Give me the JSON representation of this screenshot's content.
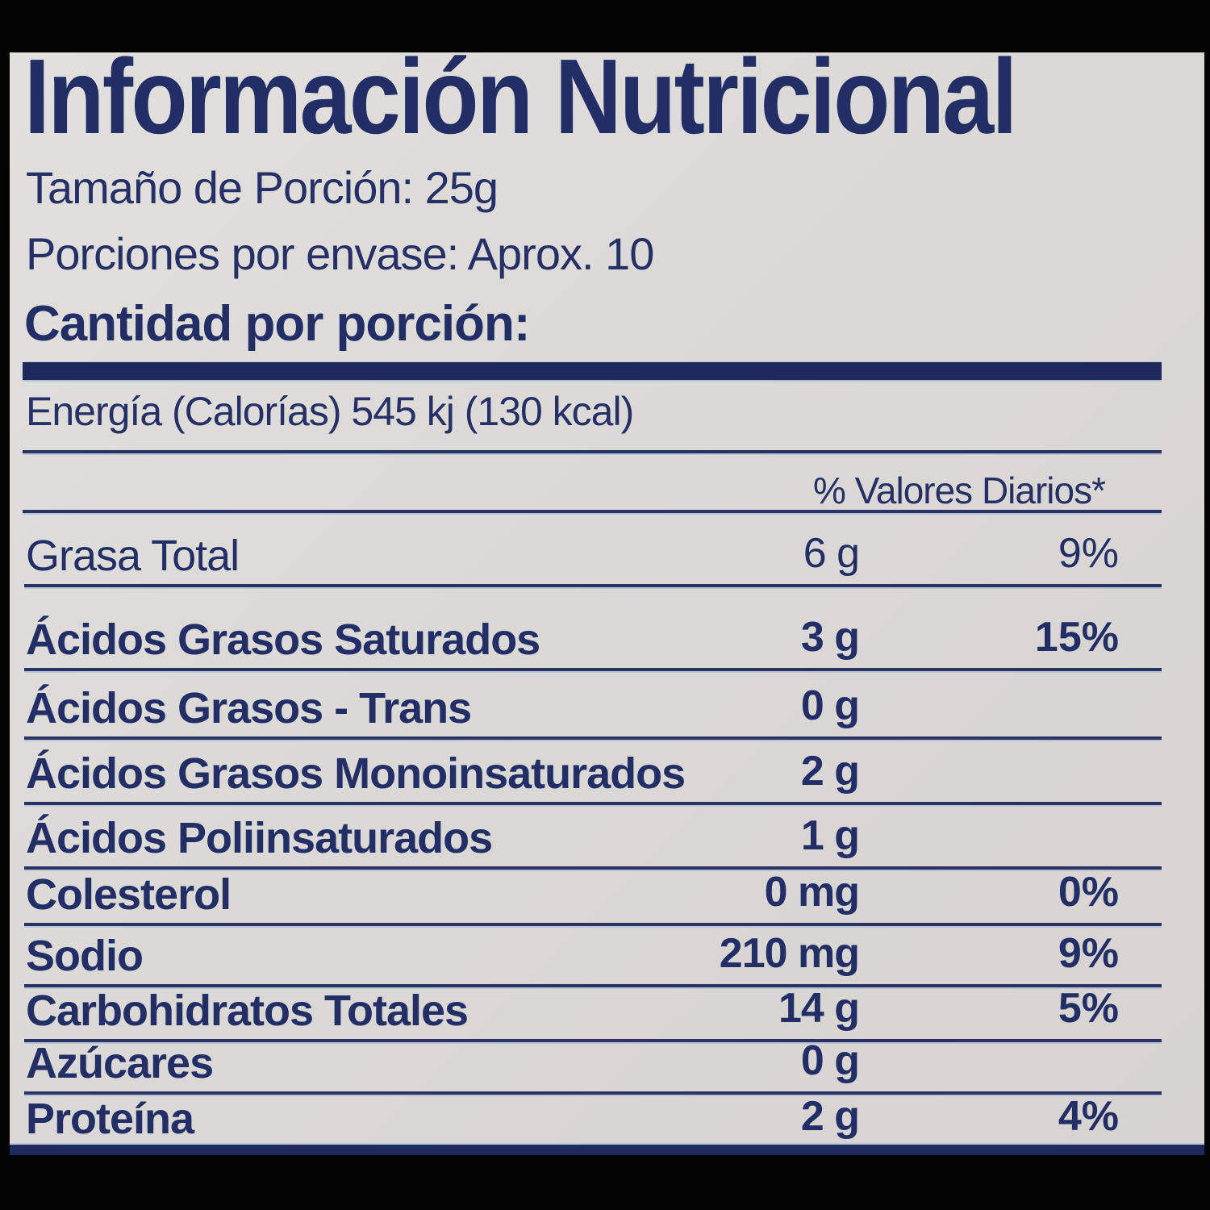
{
  "title": "Información Nutricional",
  "serving": {
    "size_line": "Tamaño de Porción: 25g",
    "per_container_line": "Porciones por envase: Aprox. 10",
    "amount_per_serving_heading": "Cantidad por porción:",
    "energy_line": "Energía (Calorías) 545 kj (130 kcal)"
  },
  "table": {
    "dv_header": "% Valores Diarios*",
    "rows": [
      {
        "label": "Grasa Total",
        "amount": "6 g",
        "dv": "9%"
      },
      {
        "label": "Ácidos Grasos Saturados",
        "amount": "3 g",
        "dv": "15%"
      },
      {
        "label": "Ácidos Grasos - Trans",
        "amount": "0 g",
        "dv": ""
      },
      {
        "label": "Ácidos Grasos Monoinsaturados",
        "amount": "2 g",
        "dv": ""
      },
      {
        "label": "Ácidos Poliinsaturados",
        "amount": "1 g",
        "dv": ""
      },
      {
        "label": "Colesterol",
        "amount": "0 mg",
        "dv": "0%"
      },
      {
        "label": "Sodio",
        "amount": "210 mg",
        "dv": "9%"
      },
      {
        "label": "Carbohidratos Totales",
        "amount": "14 g",
        "dv": "5%"
      },
      {
        "label": "Azúcares",
        "amount": "0 g",
        "dv": ""
      },
      {
        "label": "Proteína",
        "amount": "2 g",
        "dv": "4%"
      }
    ]
  },
  "colors": {
    "ink": "#232d63",
    "paper": "#dcdad7",
    "frame": "#000000"
  }
}
